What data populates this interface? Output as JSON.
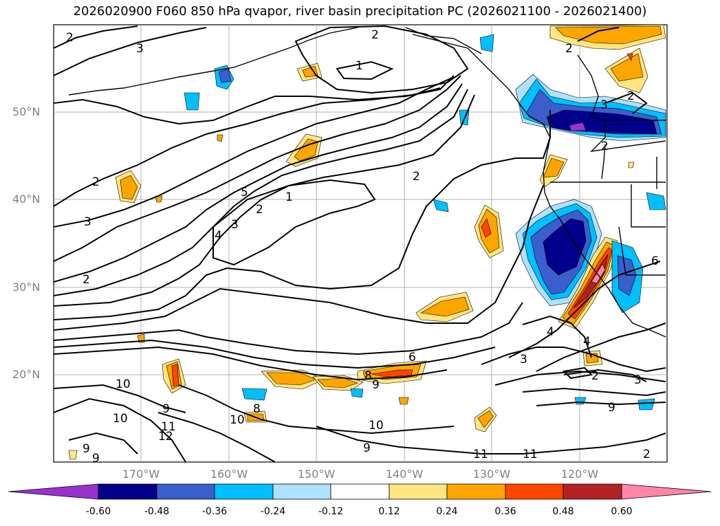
{
  "title": "2026020900 F060 850 hPa qvapor, river basin precipitation PC (2026021100 - 2026021400)",
  "lat_labels": [
    "50°N",
    "40°N",
    "30°N",
    "20°N"
  ],
  "lon_labels": [
    "170°W",
    "160°W",
    "150°W",
    "140°W",
    "130°W",
    "120°W"
  ],
  "colorbar": {
    "ticks": [
      "-0.60",
      "-0.48",
      "-0.36",
      "-0.24",
      "-0.12",
      "0.12",
      "0.24",
      "0.36",
      "0.48",
      "0.60"
    ],
    "colors": [
      "#9932CC",
      "#00008B",
      "#3A5FCD",
      "#00BFFF",
      "#ADE1FF",
      "#FFFFFF",
      "#FFE680",
      "#FFA500",
      "#FF4500",
      "#B22222",
      "#FF85A8"
    ]
  },
  "contour_labels": [
    "2",
    "3",
    "2",
    "1",
    "2",
    "1",
    "5",
    "2",
    "3",
    "3",
    "2",
    "2",
    "2",
    "2",
    "4",
    "4",
    "2",
    "3",
    "3",
    "6",
    "9",
    "8",
    "9",
    "8",
    "10",
    "10",
    "9",
    "11",
    "12",
    "10",
    "9",
    "9",
    "10",
    "11",
    "11",
    "9",
    "4",
    "2",
    "2",
    "6",
    "3"
  ]
}
